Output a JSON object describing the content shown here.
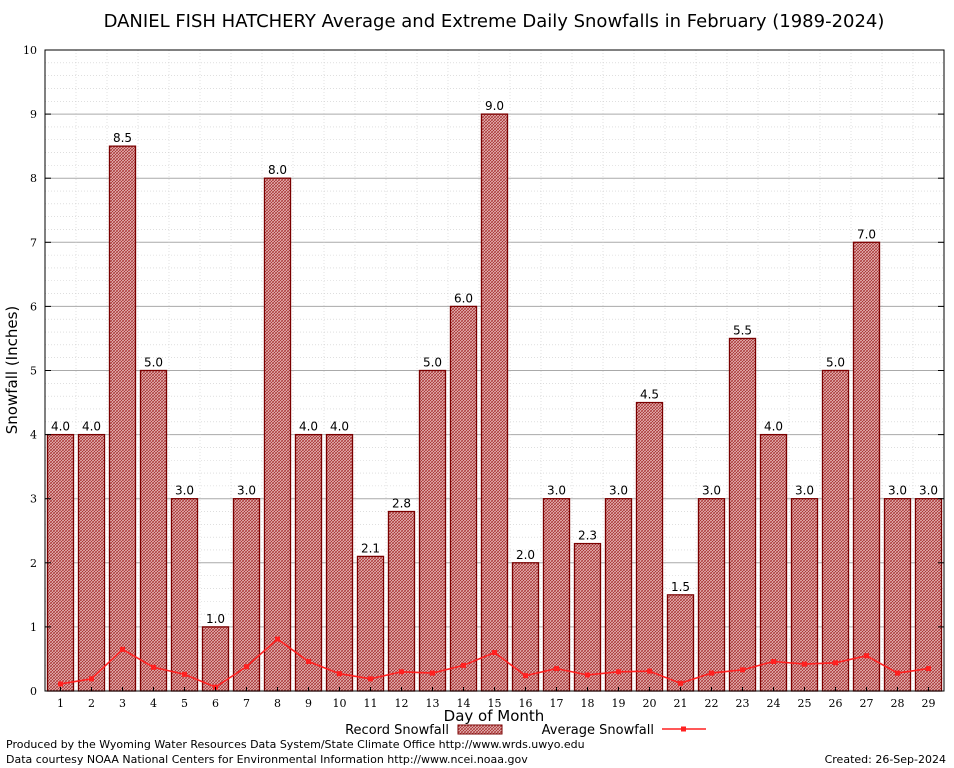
{
  "chart_data": {
    "type": "bar",
    "title": "DANIEL FISH HATCHERY Average and Extreme Daily Snowfalls in February (1989-2024)",
    "xlabel": "Day of Month",
    "ylabel": "Snowfall (Inches)",
    "ylim": [
      0,
      10
    ],
    "yticks": [
      "0",
      "1",
      "2",
      "3",
      "4",
      "5",
      "6",
      "7",
      "8",
      "9",
      "10"
    ],
    "categories": [
      "1",
      "2",
      "3",
      "4",
      "5",
      "6",
      "7",
      "8",
      "9",
      "10",
      "11",
      "12",
      "13",
      "14",
      "15",
      "16",
      "17",
      "18",
      "19",
      "20",
      "21",
      "22",
      "23",
      "24",
      "25",
      "26",
      "27",
      "28",
      "29"
    ],
    "series": [
      {
        "name": "Record Snowfall",
        "type": "bar",
        "values": [
          4.0,
          4.0,
          8.5,
          5.0,
          3.0,
          1.0,
          3.0,
          8.0,
          4.0,
          4.0,
          2.1,
          2.8,
          5.0,
          6.0,
          9.0,
          2.0,
          3.0,
          2.3,
          3.0,
          4.5,
          1.5,
          3.0,
          5.5,
          4.0,
          3.0,
          5.0,
          7.0,
          3.0,
          3.0
        ],
        "labels": [
          "4.0",
          "4.0",
          "8.5",
          "5.0",
          "3.0",
          "1.0",
          "3.0",
          "8.0",
          "4.0",
          "4.0",
          "2.1",
          "2.8",
          "5.0",
          "6.0",
          "9.0",
          "2.0",
          "3.0",
          "2.3",
          "3.0",
          "4.5",
          "1.5",
          "3.0",
          "5.5",
          "4.0",
          "3.0",
          "5.0",
          "7.0",
          "3.0",
          "3.0"
        ]
      },
      {
        "name": "Average Snowfall",
        "type": "line",
        "values": [
          0.11,
          0.19,
          0.65,
          0.37,
          0.26,
          0.06,
          0.38,
          0.81,
          0.46,
          0.27,
          0.19,
          0.3,
          0.28,
          0.4,
          0.6,
          0.24,
          0.35,
          0.25,
          0.3,
          0.31,
          0.12,
          0.28,
          0.33,
          0.46,
          0.42,
          0.44,
          0.55,
          0.28,
          0.35
        ]
      }
    ],
    "grid": true,
    "legend": "bottom-center",
    "colors": {
      "bar_fill": "#e8b7b7",
      "bar_hatch": "#a83232",
      "bar_edge": "#7a0000",
      "line": "#ff2020",
      "grid_major": "#aaaaaa",
      "grid_minor": "#cccccc"
    },
    "footer_left_1": "Produced by the Wyoming Water Resources Data System/State Climate Office http://www.wrds.uwyo.edu",
    "footer_left_2": "Data courtesy NOAA National Centers for Environmental Information http://www.ncei.noaa.gov",
    "footer_right": "Created:  26-Sep-2024"
  }
}
